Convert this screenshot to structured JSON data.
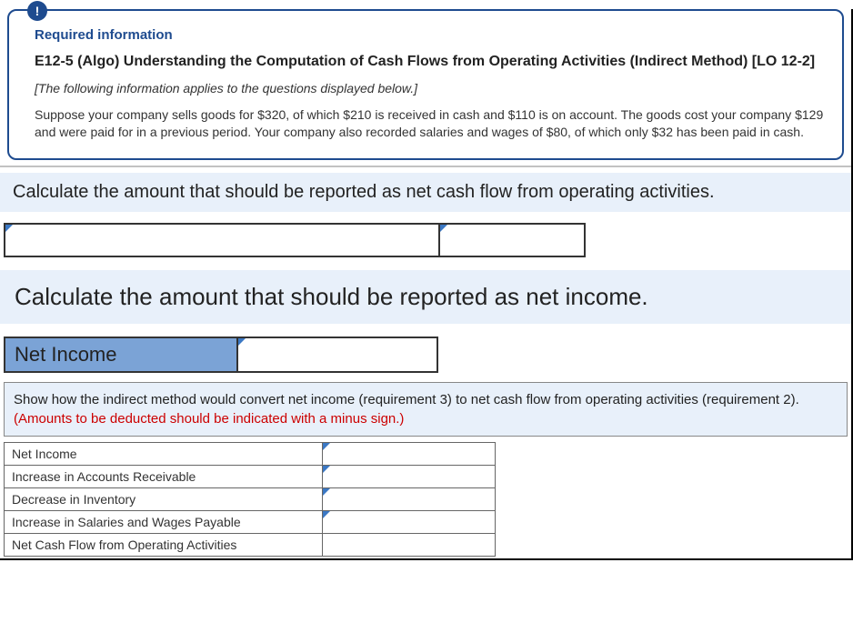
{
  "info_card": {
    "badge": "!",
    "required_label": "Required information",
    "title": "E12-5 (Algo) Understanding the Computation of Cash Flows from Operating Activities (Indirect Method) [LO 12-2]",
    "italic_note": "[The following information applies to the questions displayed below.]",
    "body": "Suppose your company sells goods for $320, of which $210 is received in cash and $110 is on account. The goods cost your company $129 and were paid for in a previous period. Your company also recorded salaries and wages of $80, of which only $32 has been paid in cash."
  },
  "prompt1": "Calculate the amount that should be reported as net cash flow from operating activities.",
  "prompt2": "Calculate the amount that should be reported as net income.",
  "net_income_label": "Net Income",
  "instruction": {
    "text": "Show how the indirect method would convert net income (requirement 3) to net cash flow from operating activities (requirement 2). ",
    "red": "(Amounts to be deducted should be indicated with a minus sign.)"
  },
  "indirect_rows": [
    {
      "label": "Net Income",
      "has_marker": true
    },
    {
      "label": "Increase in Accounts Receivable",
      "has_marker": true
    },
    {
      "label": "Decrease in Inventory",
      "has_marker": true
    },
    {
      "label": "Increase in Salaries and Wages Payable",
      "has_marker": true
    },
    {
      "label": "Net Cash Flow from Operating Activities",
      "has_marker": false
    }
  ],
  "colors": {
    "brand": "#1e4b8f",
    "banner_bg": "#e8f0fa",
    "label_fill": "#7ba3d6",
    "marker": "#3b78c4",
    "red": "#cc0000"
  }
}
